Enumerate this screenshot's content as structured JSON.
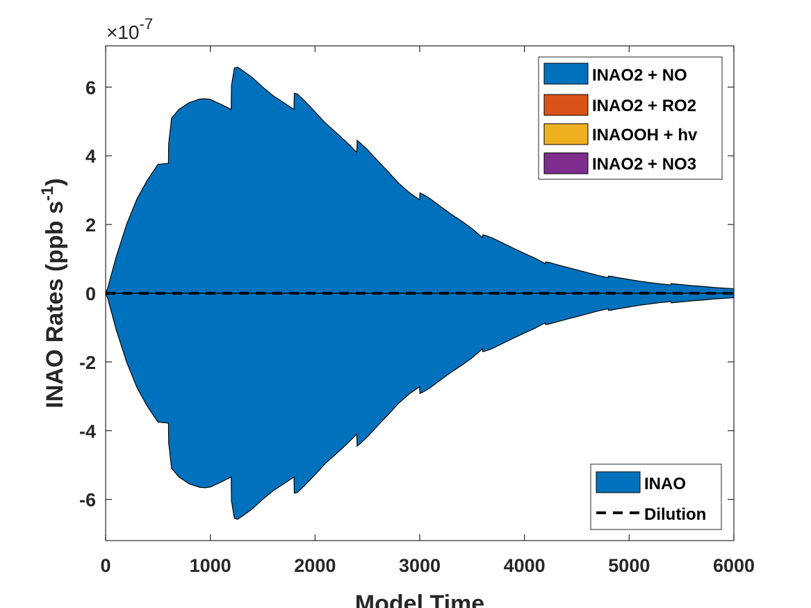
{
  "chart_data": {
    "type": "area",
    "xlabel": "Model Time",
    "ylabel": "INAO Rates (ppb s",
    "ylabel_sup": "-1",
    "ylabel_close": ")",
    "y_multiplier_prefix": "×10",
    "y_multiplier_exp": "-7",
    "xlim": [
      0,
      6000
    ],
    "ylim": [
      -7.2,
      7.2
    ],
    "x_ticks": [
      0,
      1000,
      2000,
      3000,
      4000,
      5000,
      6000
    ],
    "x_tick_labels": [
      "0",
      "1000",
      "2000",
      "3000",
      "4000",
      "5000",
      "6000"
    ],
    "y_ticks": [
      -6,
      -4,
      -2,
      0,
      2,
      4,
      6
    ],
    "y_tick_labels": [
      "-6",
      "-4",
      "-2",
      "0",
      "2",
      "4",
      "6"
    ],
    "grid": false,
    "colors": {
      "inao2_no": "#0072BD",
      "inao2_ro2": "#D95319",
      "inaooh_hv": "#EDB120",
      "inao2_no3": "#7E2F8E",
      "inao": "#0072BD",
      "dilution": "#000000"
    },
    "production_series": [
      {
        "name": "INAO2 + NO",
        "x": [
          0,
          20,
          60,
          100,
          200,
          300,
          400,
          500,
          600,
          602,
          630,
          700,
          800,
          900,
          950,
          1000,
          1100,
          1199,
          1202,
          1230,
          1260,
          1300,
          1400,
          1500,
          1600,
          1700,
          1799,
          1802,
          1830,
          1900,
          2000,
          2100,
          2200,
          2300,
          2399,
          2402,
          2430,
          2500,
          2600,
          2700,
          2800,
          2900,
          2999,
          3002,
          3030,
          3100,
          3200,
          3300,
          3400,
          3500,
          3599,
          3602,
          3630,
          3700,
          3800,
          3900,
          4000,
          4100,
          4199,
          4202,
          4230,
          4300,
          4400,
          4500,
          4600,
          4700,
          4799,
          4802,
          4830,
          4900,
          5000,
          5100,
          5200,
          5300,
          5399,
          5402,
          5430,
          5500,
          5600,
          5700,
          5800,
          5900,
          6000
        ],
        "values": [
          0,
          0.15,
          0.6,
          1.05,
          2.0,
          2.75,
          3.3,
          3.75,
          3.78,
          4.35,
          5.1,
          5.35,
          5.55,
          5.65,
          5.66,
          5.64,
          5.5,
          5.35,
          6.05,
          6.55,
          6.58,
          6.5,
          6.28,
          6.0,
          5.75,
          5.55,
          5.35,
          5.82,
          5.8,
          5.6,
          5.28,
          4.95,
          4.68,
          4.4,
          4.1,
          4.45,
          4.38,
          4.18,
          3.85,
          3.53,
          3.2,
          2.93,
          2.72,
          2.92,
          2.88,
          2.75,
          2.52,
          2.3,
          2.1,
          1.88,
          1.62,
          1.7,
          1.68,
          1.6,
          1.45,
          1.3,
          1.16,
          1.02,
          0.86,
          0.91,
          0.9,
          0.84,
          0.76,
          0.68,
          0.6,
          0.52,
          0.45,
          0.5,
          0.49,
          0.45,
          0.4,
          0.35,
          0.31,
          0.27,
          0.24,
          0.28,
          0.27,
          0.25,
          0.22,
          0.2,
          0.17,
          0.15,
          0.13
        ]
      },
      {
        "name": "INAO2 + RO2",
        "values_zero": true
      },
      {
        "name": "INAOOH + hv",
        "values_zero": true
      },
      {
        "name": "INAO2 + NO3",
        "values_zero": true
      }
    ],
    "loss_series": [
      {
        "name": "INAO",
        "mirror_of": "INAO2 + NO"
      }
    ],
    "dilution_series": {
      "name": "Dilution",
      "value": 0
    },
    "legend_top": {
      "placement": "top-right",
      "entries": [
        {
          "label": "INAO2 + NO",
          "color": "#0072BD"
        },
        {
          "label": "INAO2 + RO2",
          "color": "#D95319"
        },
        {
          "label": "INAOOH + hv",
          "color": "#EDB120"
        },
        {
          "label": "INAO2 + NO3",
          "color": "#7E2F8E"
        }
      ]
    },
    "legend_bottom": {
      "placement": "bottom-right",
      "entries": [
        {
          "label": "INAO",
          "kind": "patch",
          "color": "#0072BD"
        },
        {
          "label": "Dilution",
          "kind": "dashed-line",
          "color": "#000000"
        }
      ]
    }
  }
}
